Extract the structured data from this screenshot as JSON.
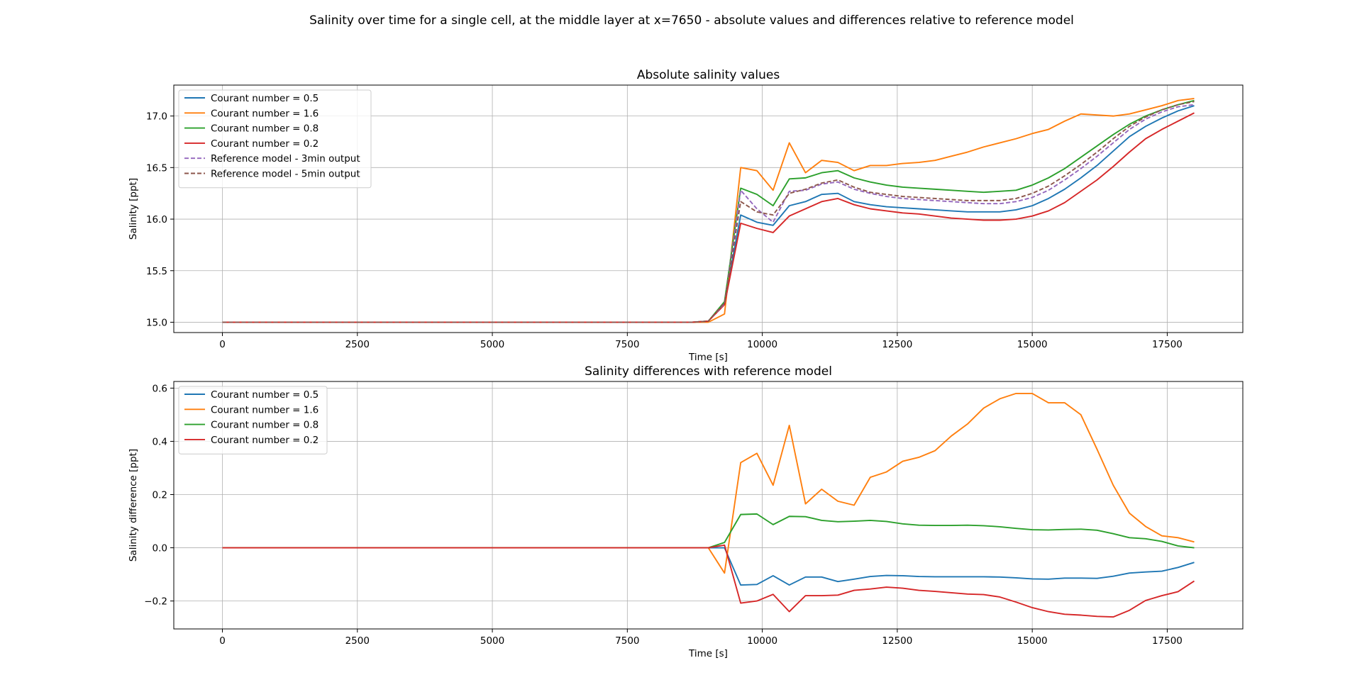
{
  "figure": {
    "suptitle": "Salinity over time for a single cell, at the middle layer at x=7650 - absolute values and differences relative to reference model"
  },
  "colors": {
    "c05": "#1f77b4",
    "c16": "#ff7f0e",
    "c08": "#2ca02c",
    "c02": "#d62728",
    "ref3": "#9467bd",
    "ref5": "#8c564b",
    "grid": "#b0b0b0"
  },
  "chart_data": [
    {
      "type": "line",
      "title": "Absolute salinity values",
      "xlabel": "Time [s]",
      "ylabel": "Salinity [ppt]",
      "xlim": [
        -900,
        18900
      ],
      "ylim": [
        14.9,
        17.3
      ],
      "xticks": [
        0,
        2500,
        5000,
        7500,
        10000,
        12500,
        15000,
        17500
      ],
      "yticks": [
        15.0,
        15.5,
        16.0,
        16.5,
        17.0
      ],
      "ytick_labels": [
        "15.0",
        "15.5",
        "16.0",
        "16.5",
        "17.0"
      ],
      "grid": true,
      "legend": "upper left",
      "x": [
        0,
        300,
        600,
        900,
        1200,
        1500,
        1800,
        2100,
        2400,
        2700,
        3000,
        3300,
        3600,
        3900,
        4200,
        4500,
        4800,
        5100,
        5400,
        5700,
        6000,
        6300,
        6600,
        6900,
        7200,
        7500,
        7800,
        8100,
        8400,
        8700,
        9000,
        9300,
        9600,
        9900,
        10200,
        10500,
        10800,
        11100,
        11400,
        11700,
        12000,
        12300,
        12600,
        12900,
        13200,
        13500,
        13800,
        14100,
        14400,
        14700,
        15000,
        15300,
        15600,
        15900,
        16200,
        16500,
        16800,
        17100,
        17400,
        17700,
        18000
      ],
      "series": [
        {
          "name": "Courant number = 0.5",
          "color": "c05",
          "dash": false,
          "values": [
            15.0,
            15.0,
            15.0,
            15.0,
            15.0,
            15.0,
            15.0,
            15.0,
            15.0,
            15.0,
            15.0,
            15.0,
            15.0,
            15.0,
            15.0,
            15.0,
            15.0,
            15.0,
            15.0,
            15.0,
            15.0,
            15.0,
            15.0,
            15.0,
            15.0,
            15.0,
            15.0,
            15.0,
            15.0,
            15.0,
            15.01,
            15.19,
            16.04,
            15.97,
            15.94,
            16.13,
            16.17,
            16.24,
            16.25,
            16.17,
            16.14,
            16.12,
            16.11,
            16.1,
            16.09,
            16.08,
            16.07,
            16.07,
            16.07,
            16.09,
            16.13,
            16.2,
            16.29,
            16.4,
            16.52,
            16.66,
            16.8,
            16.9,
            16.98,
            17.05,
            17.1
          ]
        },
        {
          "name": "Courant number = 1.6",
          "color": "c16",
          "dash": false,
          "values": [
            15.0,
            15.0,
            15.0,
            15.0,
            15.0,
            15.0,
            15.0,
            15.0,
            15.0,
            15.0,
            15.0,
            15.0,
            15.0,
            15.0,
            15.0,
            15.0,
            15.0,
            15.0,
            15.0,
            15.0,
            15.0,
            15.0,
            15.0,
            15.0,
            15.0,
            15.0,
            15.0,
            15.0,
            15.0,
            15.0,
            15.0,
            15.08,
            16.5,
            16.47,
            16.28,
            16.74,
            16.45,
            16.57,
            16.55,
            16.47,
            16.52,
            16.52,
            16.54,
            16.55,
            16.57,
            16.61,
            16.65,
            16.7,
            16.74,
            16.78,
            16.83,
            16.87,
            16.95,
            17.02,
            17.01,
            17.0,
            17.02,
            17.06,
            17.1,
            17.15,
            17.17
          ]
        },
        {
          "name": "Courant number = 0.8",
          "color": "c08",
          "dash": false,
          "values": [
            15.0,
            15.0,
            15.0,
            15.0,
            15.0,
            15.0,
            15.0,
            15.0,
            15.0,
            15.0,
            15.0,
            15.0,
            15.0,
            15.0,
            15.0,
            15.0,
            15.0,
            15.0,
            15.0,
            15.0,
            15.0,
            15.0,
            15.0,
            15.0,
            15.0,
            15.0,
            15.0,
            15.0,
            15.0,
            15.0,
            15.01,
            15.2,
            16.3,
            16.24,
            16.13,
            16.39,
            16.4,
            16.45,
            16.47,
            16.4,
            16.36,
            16.33,
            16.31,
            16.3,
            16.29,
            16.28,
            16.27,
            16.26,
            16.27,
            16.28,
            16.33,
            16.4,
            16.49,
            16.6,
            16.71,
            16.82,
            16.92,
            17.0,
            17.06,
            17.11,
            17.15
          ]
        },
        {
          "name": "Courant number = 0.2",
          "color": "c02",
          "dash": false,
          "values": [
            15.0,
            15.0,
            15.0,
            15.0,
            15.0,
            15.0,
            15.0,
            15.0,
            15.0,
            15.0,
            15.0,
            15.0,
            15.0,
            15.0,
            15.0,
            15.0,
            15.0,
            15.0,
            15.0,
            15.0,
            15.0,
            15.0,
            15.0,
            15.0,
            15.0,
            15.0,
            15.0,
            15.0,
            15.0,
            15.0,
            15.01,
            15.17,
            15.96,
            15.91,
            15.87,
            16.03,
            16.1,
            16.17,
            16.2,
            16.14,
            16.1,
            16.08,
            16.06,
            16.05,
            16.03,
            16.01,
            16.0,
            15.99,
            15.99,
            16.0,
            16.03,
            16.08,
            16.16,
            16.27,
            16.38,
            16.51,
            16.65,
            16.78,
            16.87,
            16.95,
            17.03
          ]
        },
        {
          "name": "Reference model - 3min output",
          "color": "ref3",
          "dash": true,
          "values": [
            15.0,
            15.0,
            15.0,
            15.0,
            15.0,
            15.0,
            15.0,
            15.0,
            15.0,
            15.0,
            15.0,
            15.0,
            15.0,
            15.0,
            15.0,
            15.0,
            15.0,
            15.0,
            15.0,
            15.0,
            15.0,
            15.0,
            15.0,
            15.0,
            15.0,
            15.0,
            15.0,
            15.0,
            15.0,
            15.0,
            15.01,
            15.18,
            16.28,
            16.1,
            15.97,
            16.27,
            16.28,
            16.34,
            16.36,
            16.29,
            16.25,
            16.22,
            16.2,
            16.19,
            16.18,
            16.17,
            16.16,
            16.15,
            16.15,
            16.17,
            16.21,
            16.28,
            16.38,
            16.49,
            16.61,
            16.74,
            16.87,
            16.97,
            17.04,
            17.09,
            17.11
          ]
        },
        {
          "name": "Reference model - 5min output",
          "color": "ref5",
          "dash": true,
          "values": [
            15.0,
            15.0,
            15.0,
            15.0,
            15.0,
            15.0,
            15.0,
            15.0,
            15.0,
            15.0,
            15.0,
            15.0,
            15.0,
            15.0,
            15.0,
            15.0,
            15.0,
            15.0,
            15.0,
            15.0,
            15.0,
            15.0,
            15.0,
            15.0,
            15.0,
            15.0,
            15.0,
            15.0,
            15.0,
            15.0,
            15.01,
            15.19,
            16.17,
            16.07,
            16.04,
            16.25,
            16.29,
            16.35,
            16.38,
            16.31,
            16.26,
            16.24,
            16.22,
            16.21,
            16.2,
            16.19,
            16.18,
            16.18,
            16.18,
            16.2,
            16.25,
            16.32,
            16.42,
            16.53,
            16.65,
            16.78,
            16.9,
            16.99,
            17.06,
            17.11,
            17.14
          ]
        }
      ]
    },
    {
      "type": "line",
      "title": "Salinity differences with reference model",
      "xlabel": "Time [s]",
      "ylabel": "Salinity difference [ppt]",
      "xlim": [
        -900,
        18900
      ],
      "ylim": [
        -0.305,
        0.625
      ],
      "xticks": [
        0,
        2500,
        5000,
        7500,
        10000,
        12500,
        15000,
        17500
      ],
      "yticks": [
        -0.2,
        0.0,
        0.2,
        0.4,
        0.6
      ],
      "ytick_labels": [
        "−0.2",
        "0.0",
        "0.2",
        "0.4",
        "0.6"
      ],
      "grid": true,
      "legend": "upper left",
      "x": [
        0,
        300,
        600,
        900,
        1200,
        1500,
        1800,
        2100,
        2400,
        2700,
        3000,
        3300,
        3600,
        3900,
        4200,
        4500,
        4800,
        5100,
        5400,
        5700,
        6000,
        6300,
        6600,
        6900,
        7200,
        7500,
        7800,
        8100,
        8400,
        8700,
        9000,
        9300,
        9600,
        9900,
        10200,
        10500,
        10800,
        11100,
        11400,
        11700,
        12000,
        12300,
        12600,
        12900,
        13200,
        13500,
        13800,
        14100,
        14400,
        14700,
        15000,
        15300,
        15600,
        15900,
        16200,
        16500,
        16800,
        17100,
        17400,
        17700,
        18000
      ],
      "series": [
        {
          "name": "Courant number = 0.5",
          "color": "c05",
          "values": [
            0,
            0,
            0,
            0,
            0,
            0,
            0,
            0,
            0,
            0,
            0,
            0,
            0,
            0,
            0,
            0,
            0,
            0,
            0,
            0,
            0,
            0,
            0,
            0,
            0,
            0,
            0,
            0,
            0,
            0,
            0.0,
            0.0,
            -0.14,
            -0.138,
            -0.105,
            -0.14,
            -0.11,
            -0.11,
            -0.127,
            -0.118,
            -0.108,
            -0.104,
            -0.105,
            -0.108,
            -0.109,
            -0.109,
            -0.109,
            -0.109,
            -0.11,
            -0.113,
            -0.117,
            -0.118,
            -0.114,
            -0.114,
            -0.115,
            -0.107,
            -0.095,
            -0.091,
            -0.088,
            -0.074,
            -0.055
          ]
        },
        {
          "name": "Courant number = 1.6",
          "color": "c16",
          "values": [
            0,
            0,
            0,
            0,
            0,
            0,
            0,
            0,
            0,
            0,
            0,
            0,
            0,
            0,
            0,
            0,
            0,
            0,
            0,
            0,
            0,
            0,
            0,
            0,
            0,
            0,
            0,
            0,
            0,
            0,
            0.0,
            -0.095,
            0.32,
            0.355,
            0.235,
            0.46,
            0.165,
            0.22,
            0.175,
            0.16,
            0.265,
            0.285,
            0.325,
            0.34,
            0.365,
            0.42,
            0.465,
            0.525,
            0.56,
            0.58,
            0.58,
            0.545,
            0.545,
            0.5,
            0.37,
            0.235,
            0.13,
            0.08,
            0.045,
            0.038,
            0.022
          ]
        },
        {
          "name": "Courant number = 0.8",
          "color": "c08",
          "values": [
            0,
            0,
            0,
            0,
            0,
            0,
            0,
            0,
            0,
            0,
            0,
            0,
            0,
            0,
            0,
            0,
            0,
            0,
            0,
            0,
            0,
            0,
            0,
            0,
            0,
            0,
            0,
            0,
            0,
            0,
            0.0,
            0.02,
            0.125,
            0.127,
            0.087,
            0.118,
            0.117,
            0.103,
            0.098,
            0.1,
            0.103,
            0.099,
            0.09,
            0.085,
            0.084,
            0.084,
            0.085,
            0.083,
            0.079,
            0.073,
            0.068,
            0.067,
            0.069,
            0.07,
            0.066,
            0.053,
            0.038,
            0.034,
            0.024,
            0.007,
            0.0
          ]
        },
        {
          "name": "Courant number = 0.2",
          "color": "c02",
          "values": [
            0,
            0,
            0,
            0,
            0,
            0,
            0,
            0,
            0,
            0,
            0,
            0,
            0,
            0,
            0,
            0,
            0,
            0,
            0,
            0,
            0,
            0,
            0,
            0,
            0,
            0,
            0,
            0,
            0,
            0,
            0.0,
            0.01,
            -0.208,
            -0.2,
            -0.175,
            -0.24,
            -0.18,
            -0.18,
            -0.178,
            -0.16,
            -0.155,
            -0.148,
            -0.152,
            -0.16,
            -0.164,
            -0.169,
            -0.174,
            -0.176,
            -0.185,
            -0.204,
            -0.225,
            -0.24,
            -0.25,
            -0.253,
            -0.258,
            -0.26,
            -0.235,
            -0.198,
            -0.18,
            -0.165,
            -0.125
          ]
        }
      ]
    }
  ]
}
